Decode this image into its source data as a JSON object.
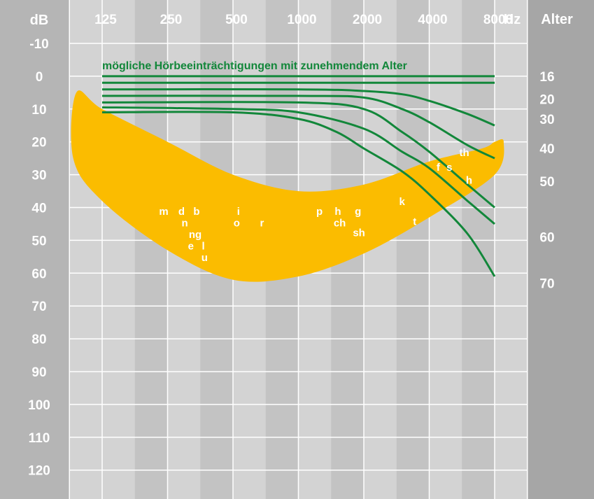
{
  "chart_data": {
    "type": "line",
    "title": "mögliche Hörbeeinträchtigungen mit zunehmendem Alter",
    "ylabel": "dB",
    "xunit": "Hz",
    "agelabel": "Alter",
    "x": [
      125,
      250,
      500,
      1000,
      2000,
      4000,
      8000
    ],
    "xlabels": [
      "125",
      "250",
      "500",
      "1000",
      "2000",
      "4000",
      "8000"
    ],
    "ylim": [
      -10,
      120
    ],
    "yticks": [
      -10,
      0,
      10,
      20,
      30,
      40,
      50,
      60,
      70,
      80,
      90,
      100,
      110,
      120
    ],
    "age_labels": [
      {
        "age": "16",
        "db": 0
      },
      {
        "age": "20",
        "db": 7
      },
      {
        "age": "30",
        "db": 13
      },
      {
        "age": "40",
        "db": 22
      },
      {
        "age": "50",
        "db": 32
      },
      {
        "age": "60",
        "db": 49
      },
      {
        "age": "70",
        "db": 63
      }
    ],
    "series": [
      {
        "x": [
          125,
          8000
        ],
        "y": [
          0,
          0
        ]
      },
      {
        "x": [
          125,
          8000
        ],
        "y": [
          2,
          2
        ]
      },
      {
        "x": [
          125,
          1000,
          2000,
          3000,
          4000,
          6000,
          8000
        ],
        "y": [
          4,
          4,
          4.5,
          5.5,
          7.5,
          11.5,
          15
        ]
      },
      {
        "x": [
          125,
          1000,
          2000,
          3000,
          4000,
          6000,
          8000
        ],
        "y": [
          6,
          6,
          6.5,
          10,
          14,
          21,
          25
        ]
      },
      {
        "x": [
          125,
          1000,
          2000,
          3000,
          4000,
          6000,
          8000
        ],
        "y": [
          8,
          8,
          10,
          17,
          23,
          33,
          40
        ]
      },
      {
        "x": [
          125,
          500,
          1000,
          2000,
          3000,
          4000,
          6000,
          8000
        ],
        "y": [
          9.5,
          10,
          11,
          16,
          23,
          28,
          38,
          45
        ]
      },
      {
        "x": [
          125,
          500,
          1000,
          1500,
          2000,
          3000,
          4000,
          6000,
          8000
        ],
        "y": [
          11,
          11,
          13,
          17,
          22,
          29,
          36,
          48,
          61
        ]
      }
    ],
    "speech_banana": {
      "x": [
        95,
        125,
        250,
        500,
        1000,
        2000,
        4000,
        7000,
        8000,
        8800,
        8000,
        4000,
        2000,
        1000,
        500,
        250,
        125,
        92
      ],
      "y": [
        5,
        10,
        20,
        30,
        35,
        33,
        26,
        22,
        20,
        20,
        30,
        43,
        54,
        61,
        62,
        53,
        38,
        25
      ]
    },
    "phonemes": [
      {
        "t": "m",
        "hz": 240,
        "db": 41
      },
      {
        "t": "d",
        "hz": 290,
        "db": 41
      },
      {
        "t": "b",
        "hz": 340,
        "db": 41
      },
      {
        "t": "n",
        "hz": 300,
        "db": 44.5
      },
      {
        "t": "ng",
        "hz": 335,
        "db": 48
      },
      {
        "t": "e",
        "hz": 320,
        "db": 51.5
      },
      {
        "t": "l",
        "hz": 365,
        "db": 51.5
      },
      {
        "t": "u",
        "hz": 370,
        "db": 55
      },
      {
        "t": "i",
        "hz": 530,
        "db": 41
      },
      {
        "t": "o",
        "hz": 520,
        "db": 44.5
      },
      {
        "t": "r",
        "hz": 680,
        "db": 44.5
      },
      {
        "t": "p",
        "hz": 1250,
        "db": 41
      },
      {
        "t": "h",
        "hz": 1520,
        "db": 41
      },
      {
        "t": "g",
        "hz": 1880,
        "db": 41
      },
      {
        "t": "ch",
        "hz": 1550,
        "db": 44.5
      },
      {
        "t": "sh",
        "hz": 1900,
        "db": 47.5
      },
      {
        "t": "k",
        "hz": 3000,
        "db": 38
      },
      {
        "t": "t",
        "hz": 3430,
        "db": 44
      },
      {
        "t": "f",
        "hz": 4400,
        "db": 27.5
      },
      {
        "t": "s",
        "hz": 4950,
        "db": 27.5
      },
      {
        "t": "th",
        "hz": 5800,
        "db": 23
      },
      {
        "t": "h",
        "hz": 6100,
        "db": 31.5
      }
    ],
    "colors": {
      "background": "#d3d3d3",
      "left_margin": "#b5b5b5",
      "right_margin": "#a6a6a6",
      "dark_band": "#c3c3c3",
      "banana": "#fbbc00",
      "lines": "#12873a",
      "labels": "#ffffff"
    },
    "grid": true
  }
}
